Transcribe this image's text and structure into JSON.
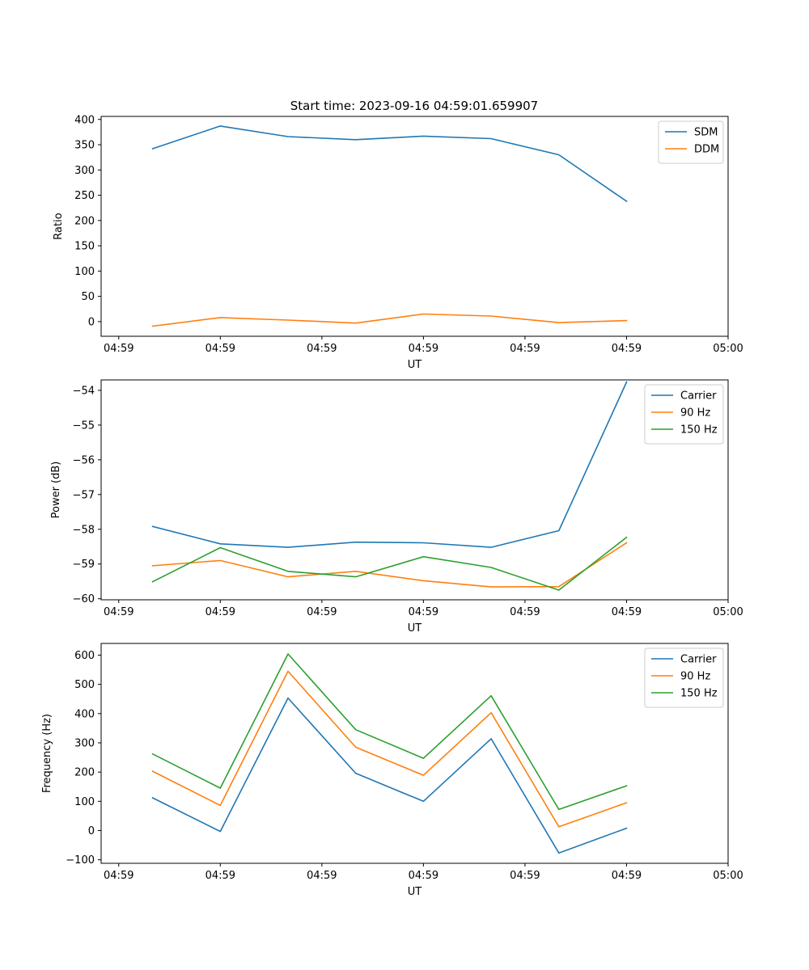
{
  "figure": {
    "title": "Start time: 2023-09-16 04:59:01.659907"
  },
  "colors": {
    "c0": "#1f77b4",
    "c1": "#ff7f0e",
    "c2": "#2ca02c"
  },
  "chart_data": [
    {
      "type": "line",
      "title": "Start time: 2023-09-16 04:59:01.659907",
      "xlabel": "UT",
      "ylabel": "Ratio",
      "x": [
        1,
        2,
        3,
        4,
        5,
        6,
        7,
        8
      ],
      "xlim": [
        0.24,
        9.5
      ],
      "ylim": [
        -29,
        406
      ],
      "xticks": [
        0.5,
        2,
        3.5,
        5,
        6.5,
        8,
        9.5
      ],
      "xtick_labels": [
        "04:59",
        "04:59",
        "04:59",
        "04:59",
        "04:59",
        "04:59",
        "05:00"
      ],
      "yticks": [
        0,
        50,
        100,
        150,
        200,
        250,
        300,
        350,
        400
      ],
      "ytick_labels": [
        "0",
        "50",
        "100",
        "150",
        "200",
        "250",
        "300",
        "350",
        "400"
      ],
      "legend": "top-right",
      "series": [
        {
          "name": "SDM",
          "color_key": "c0",
          "values": [
            342,
            387,
            366,
            360,
            367,
            362,
            330,
            238
          ]
        },
        {
          "name": "DDM",
          "color_key": "c1",
          "values": [
            -9,
            8,
            3,
            -3,
            15,
            11,
            -2,
            2
          ]
        }
      ]
    },
    {
      "type": "line",
      "title": "",
      "xlabel": "UT",
      "ylabel": "Power (dB)",
      "x": [
        1,
        2,
        3,
        4,
        5,
        6,
        7,
        8
      ],
      "xlim": [
        0.24,
        9.5
      ],
      "ylim": [
        -60.03,
        -53.7
      ],
      "xticks": [
        0.5,
        2,
        3.5,
        5,
        6.5,
        8,
        9.5
      ],
      "xtick_labels": [
        "04:59",
        "04:59",
        "04:59",
        "04:59",
        "04:59",
        "04:59",
        "05:00"
      ],
      "yticks": [
        -60,
        -59,
        -58,
        -57,
        -56,
        -55,
        -54
      ],
      "ytick_labels": [
        "−60",
        "−59",
        "−58",
        "−57",
        "−56",
        "−55",
        "−54"
      ],
      "legend": "top-right",
      "series": [
        {
          "name": "Carrier",
          "color_key": "c0",
          "values": [
            -57.92,
            -58.42,
            -58.52,
            -58.37,
            -58.39,
            -58.52,
            -58.04,
            -53.76
          ]
        },
        {
          "name": "90 Hz",
          "color_key": "c1",
          "values": [
            -59.05,
            -58.9,
            -59.37,
            -59.21,
            -59.48,
            -59.66,
            -59.65,
            -58.39
          ]
        },
        {
          "name": "150 Hz",
          "color_key": "c2",
          "values": [
            -59.51,
            -58.53,
            -59.21,
            -59.37,
            -58.79,
            -59.1,
            -59.75,
            -58.23
          ]
        }
      ]
    },
    {
      "type": "line",
      "title": "",
      "xlabel": "UT",
      "ylabel": "Frequency (Hz)",
      "x": [
        1,
        2,
        3,
        4,
        5,
        6,
        7,
        8
      ],
      "xlim": [
        0.24,
        9.5
      ],
      "ylim": [
        -112,
        640
      ],
      "xticks": [
        0.5,
        2,
        3.5,
        5,
        6.5,
        8,
        9.5
      ],
      "xtick_labels": [
        "04:59",
        "04:59",
        "04:59",
        "04:59",
        "04:59",
        "04:59",
        "05:00"
      ],
      "yticks": [
        -100,
        0,
        100,
        200,
        300,
        400,
        500,
        600
      ],
      "ytick_labels": [
        "−100",
        "0",
        "100",
        "200",
        "300",
        "400",
        "500",
        "600"
      ],
      "legend": "top-right",
      "series": [
        {
          "name": "Carrier",
          "color_key": "c0",
          "values": [
            112,
            -3,
            453,
            196,
            100,
            314,
            -77,
            8
          ]
        },
        {
          "name": "90 Hz",
          "color_key": "c1",
          "values": [
            203,
            86,
            545,
            285,
            189,
            403,
            13,
            95
          ]
        },
        {
          "name": "150 Hz",
          "color_key": "c2",
          "values": [
            262,
            145,
            604,
            345,
            247,
            461,
            72,
            153
          ]
        }
      ]
    }
  ]
}
